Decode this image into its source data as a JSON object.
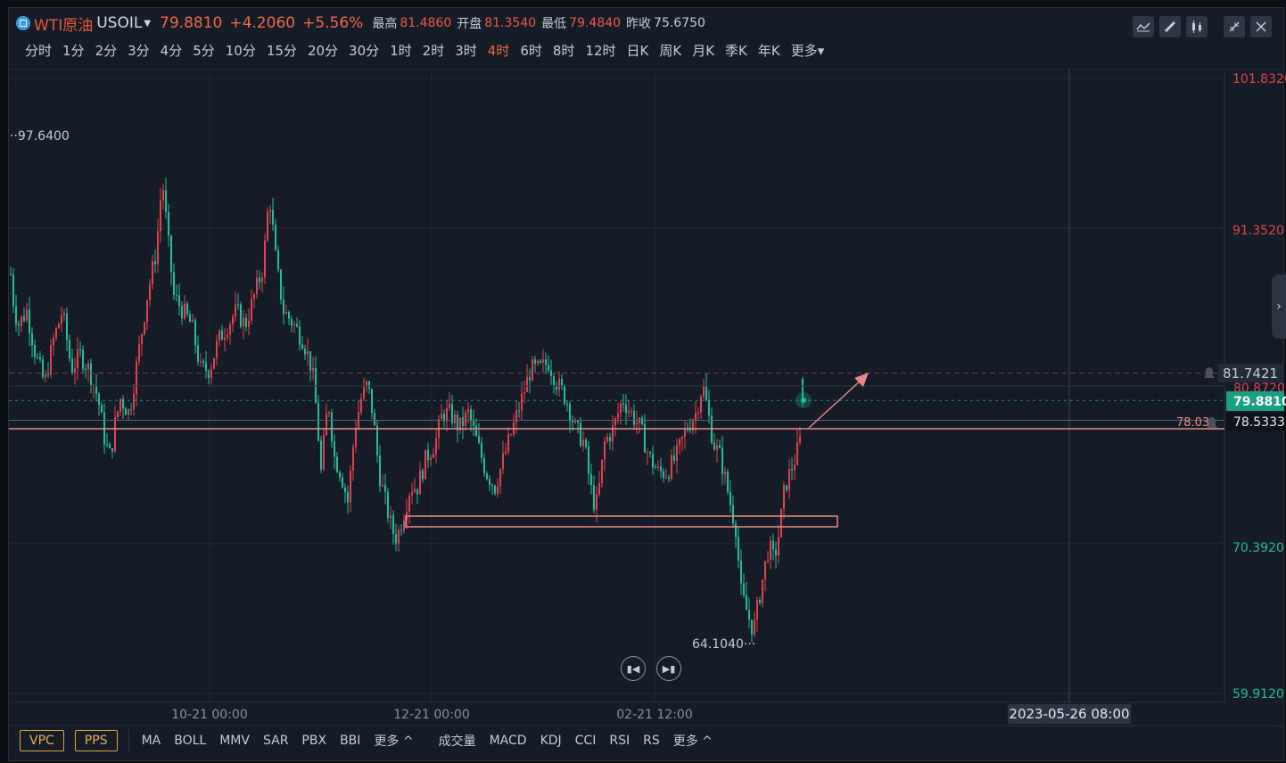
{
  "header": {
    "symbol_name": "WTI原油",
    "symbol_code": "USOIL",
    "dropdown_icon": "caret-down-icon",
    "last_price": "79.8810",
    "change": "+4.2060",
    "change_pct": "+5.56%",
    "high_label": "最高",
    "high_value": "81.4860",
    "open_label": "开盘",
    "open_value": "81.3540",
    "low_label": "最低",
    "low_value": "79.4840",
    "prev_close_label": "昨收",
    "prev_close_value": "75.6750"
  },
  "periods": [
    "分时",
    "1分",
    "2分",
    "3分",
    "4分",
    "5分",
    "10分",
    "15分",
    "20分",
    "30分",
    "1时",
    "2时",
    "3时",
    "4时",
    "6时",
    "8时",
    "12时",
    "日K",
    "周K",
    "月K",
    "季K",
    "年K",
    "更多"
  ],
  "active_period": "4时",
  "price_axis": {
    "ticks": [
      "101.8320",
      "91.3520",
      "70.3920",
      "59.9120"
    ],
    "tick_colors": [
      "#e0434f",
      "#e0434f",
      "#1fbf9b",
      "#1fbf9b"
    ],
    "alert_price": "81.7421",
    "partial_price": "80.8720",
    "current_price": "79.8810",
    "line_price": "78.5333",
    "line_label_left": "78.03"
  },
  "chart_annotations": {
    "max_label": "97.6400",
    "min_label": "64.1040"
  },
  "time_axis": {
    "ticks": [
      "10-21 00:00",
      "12-21 00:00",
      "02-21 12:00"
    ],
    "crosshair_time": "2023-05-26 08:00"
  },
  "bottom": {
    "tag_buttons": [
      "VPC",
      "PPS"
    ],
    "main_indicators": [
      "MA",
      "BOLL",
      "MMV",
      "SAR",
      "PBX",
      "BBI"
    ],
    "sub_indicators": [
      "成交量",
      "MACD",
      "KDJ",
      "CCI",
      "RSI",
      "RS"
    ],
    "more_label": "更多 ^"
  },
  "colors": {
    "up": "#e0434f",
    "down": "#1fbf9b",
    "active": "#f0683f",
    "background": "#151b27"
  }
}
